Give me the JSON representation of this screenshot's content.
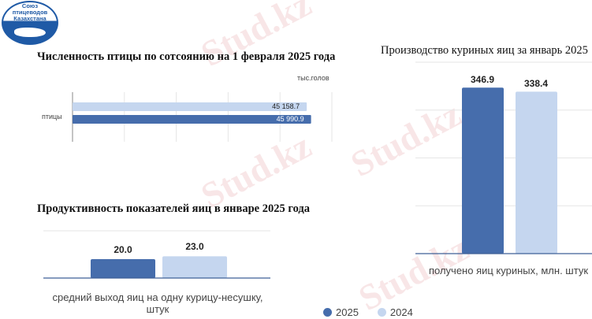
{
  "logo": {
    "text_lines": [
      "Союз",
      "птицеводов",
      "Казахстана"
    ]
  },
  "watermark": "Stud.kz",
  "colors": {
    "y2025": "#466dac",
    "y2024": "#c5d6ef"
  },
  "legend": [
    {
      "label": "2025",
      "color": "#466dac"
    },
    {
      "label": "2024",
      "color": "#c5d6ef"
    }
  ],
  "chart_data": [
    {
      "type": "bar",
      "orientation": "horizontal",
      "title": "Численность птицы по сотсоянию на 1 февраля 2025 года",
      "unit_label": "тыс.голов",
      "categories": [
        "птицы"
      ],
      "series": [
        {
          "name": "2024",
          "values": [
            45158.7
          ],
          "label": "45 158.7"
        },
        {
          "name": "2025",
          "values": [
            45990.9
          ],
          "label": "45 990.9"
        }
      ],
      "xlim": [
        0,
        50000
      ],
      "grid": true
    },
    {
      "type": "bar",
      "title": "Продуктивность показателей яиц в январе 2025 года",
      "categories": [
        "средний выход яиц на одну курицу-несушку, штук"
      ],
      "series": [
        {
          "name": "2025",
          "values": [
            20.0
          ],
          "label": "20.0"
        },
        {
          "name": "2024",
          "values": [
            23.0
          ],
          "label": "23.0"
        }
      ],
      "grid": true
    },
    {
      "type": "bar",
      "title": "Производство куриных яиц за январь 2025",
      "categories": [
        "получено яиц куриных, млн. штук"
      ],
      "series": [
        {
          "name": "2025",
          "values": [
            346.9
          ],
          "label": "346.9"
        },
        {
          "name": "2024",
          "values": [
            338.4
          ],
          "label": "338.4"
        }
      ],
      "ylim": [
        0,
        400
      ],
      "grid": true
    }
  ]
}
